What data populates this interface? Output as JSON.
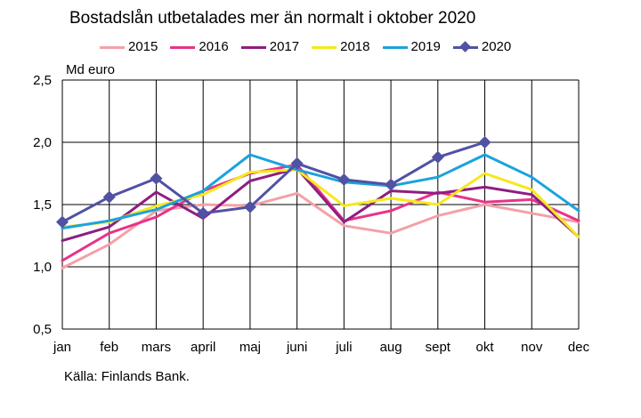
{
  "chart_data": {
    "type": "line",
    "title": "Bostadslån utbetalades mer än normalt i oktober 2020",
    "ylabel": "Md euro",
    "source": "Källa: Finlands Bank.",
    "categories": [
      "jan",
      "feb",
      "mars",
      "april",
      "maj",
      "juni",
      "juli",
      "aug",
      "sept",
      "okt",
      "nov",
      "dec"
    ],
    "ylim": [
      0.5,
      2.5
    ],
    "yticks": [
      "0,5",
      "1,0",
      "1,5",
      "2,0",
      "2,5"
    ],
    "ytick_values": [
      0.5,
      1.0,
      1.5,
      2.0,
      2.5
    ],
    "grid": true,
    "legend_position": "top",
    "series": [
      {
        "name": "2015",
        "color": "#f4a0a8",
        "marker": "none",
        "values": [
          0.99,
          1.18,
          1.45,
          1.5,
          1.49,
          1.59,
          1.33,
          1.27,
          1.41,
          1.5,
          1.43,
          1.36
        ]
      },
      {
        "name": "2016",
        "color": "#e8338a",
        "marker": "none",
        "values": [
          1.05,
          1.27,
          1.4,
          1.61,
          1.75,
          1.82,
          1.37,
          1.45,
          1.6,
          1.52,
          1.54,
          1.37
        ]
      },
      {
        "name": "2017",
        "color": "#8e1e82",
        "marker": "none",
        "values": [
          1.21,
          1.32,
          1.6,
          1.39,
          1.69,
          1.79,
          1.36,
          1.61,
          1.59,
          1.64,
          1.58,
          1.24
        ]
      },
      {
        "name": "2018",
        "color": "#f7e81c",
        "marker": "none",
        "values": [
          1.32,
          1.36,
          1.49,
          1.58,
          1.76,
          1.78,
          1.49,
          1.55,
          1.5,
          1.75,
          1.62,
          1.24
        ]
      },
      {
        "name": "2019",
        "color": "#1aa3dd",
        "marker": "none",
        "values": [
          1.31,
          1.37,
          1.46,
          1.61,
          1.9,
          1.78,
          1.68,
          1.65,
          1.72,
          1.9,
          1.72,
          1.45
        ]
      },
      {
        "name": "2020",
        "color": "#5052a3",
        "marker": "diamond",
        "values": [
          1.36,
          1.56,
          1.71,
          1.43,
          1.48,
          1.83,
          1.7,
          1.66,
          1.88,
          2.0,
          null,
          null
        ]
      }
    ]
  }
}
